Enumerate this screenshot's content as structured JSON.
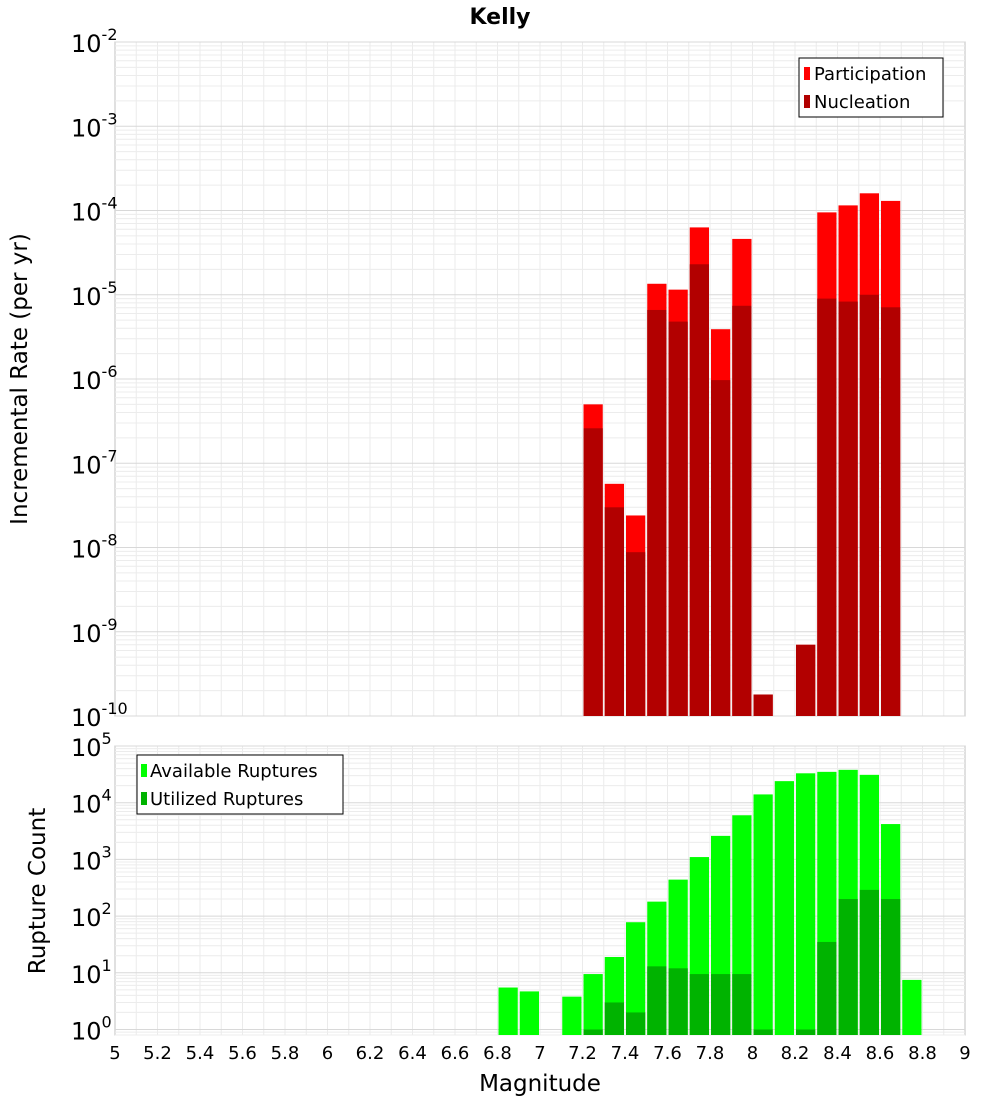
{
  "chart_data": [
    {
      "type": "bar",
      "title": "Kelly",
      "xlabel": "",
      "ylabel": "Incremental Rate (per yr)",
      "yscale": "log",
      "ylim": [
        1e-10,
        0.01
      ],
      "xlim": [
        5,
        9
      ],
      "bin_width": 0.1,
      "grid": true,
      "legend_position": "top-right",
      "y_ticks": [
        {
          "base": "10",
          "exp": "-10",
          "value": 1e-10
        },
        {
          "base": "10",
          "exp": "-9",
          "value": 1e-09
        },
        {
          "base": "10",
          "exp": "-8",
          "value": 1e-08
        },
        {
          "base": "10",
          "exp": "-7",
          "value": 1e-07
        },
        {
          "base": "10",
          "exp": "-6",
          "value": 1e-06
        },
        {
          "base": "10",
          "exp": "-5",
          "value": 1e-05
        },
        {
          "base": "10",
          "exp": "-4",
          "value": 0.0001
        },
        {
          "base": "10",
          "exp": "-3",
          "value": 0.001
        },
        {
          "base": "10",
          "exp": "-2",
          "value": 0.01
        }
      ],
      "series": [
        {
          "name": "Participation",
          "color": "#ff0000",
          "points": [
            [
              7.25,
              5e-07
            ],
            [
              7.35,
              5.7e-08
            ],
            [
              7.45,
              2.4e-08
            ],
            [
              7.55,
              1.35e-05
            ],
            [
              7.65,
              1.15e-05
            ],
            [
              7.75,
              6.3e-05
            ],
            [
              7.85,
              3.9e-06
            ],
            [
              7.95,
              4.6e-05
            ],
            [
              8.05,
              1.8e-10
            ],
            [
              8.25,
              7e-10
            ],
            [
              8.35,
              9.5e-05
            ],
            [
              8.45,
              0.000115
            ],
            [
              8.55,
              0.00016
            ],
            [
              8.65,
              0.00013
            ]
          ]
        },
        {
          "name": "Nucleation",
          "color": "#b20000",
          "points": [
            [
              7.25,
              2.6e-07
            ],
            [
              7.35,
              3e-08
            ],
            [
              7.45,
              8.8e-09
            ],
            [
              7.55,
              6.6e-06
            ],
            [
              7.65,
              4.8e-06
            ],
            [
              7.75,
              2.3e-05
            ],
            [
              7.85,
              9.7e-07
            ],
            [
              7.95,
              7.4e-06
            ],
            [
              8.05,
              1.8e-10
            ],
            [
              8.25,
              7e-10
            ],
            [
              8.35,
              9e-06
            ],
            [
              8.45,
              8.3e-06
            ],
            [
              8.55,
              1e-05
            ],
            [
              8.65,
              7.1e-06
            ]
          ]
        }
      ]
    },
    {
      "type": "bar",
      "title": "",
      "xlabel": "Magnitude",
      "ylabel": "Rupture Count",
      "yscale": "log",
      "ylim": [
        0.8,
        100000
      ],
      "xlim": [
        5,
        9
      ],
      "bin_width": 0.1,
      "grid": true,
      "legend_position": "top-left",
      "x_ticks": [
        "5",
        "5.2",
        "5.4",
        "5.6",
        "5.8",
        "6",
        "6.2",
        "6.4",
        "6.6",
        "6.8",
        "7",
        "7.2",
        "7.4",
        "7.6",
        "7.8",
        "8",
        "8.2",
        "8.4",
        "8.6",
        "8.8",
        "9"
      ],
      "y_ticks": [
        {
          "base": "10",
          "exp": "0",
          "value": 1
        },
        {
          "base": "10",
          "exp": "1",
          "value": 10
        },
        {
          "base": "10",
          "exp": "2",
          "value": 100
        },
        {
          "base": "10",
          "exp": "3",
          "value": 1000
        },
        {
          "base": "10",
          "exp": "4",
          "value": 10000
        },
        {
          "base": "10",
          "exp": "5",
          "value": 100000
        }
      ],
      "series": [
        {
          "name": "Available Ruptures",
          "color": "#00ff00",
          "points": [
            [
              6.85,
              5.5
            ],
            [
              6.95,
              4.7
            ],
            [
              7.15,
              3.8
            ],
            [
              7.25,
              9.5
            ],
            [
              7.35,
              19
            ],
            [
              7.45,
              78
            ],
            [
              7.55,
              180
            ],
            [
              7.65,
              440
            ],
            [
              7.75,
              1100
            ],
            [
              7.85,
              2600
            ],
            [
              7.95,
              6000
            ],
            [
              8.05,
              14000
            ],
            [
              8.15,
              24000
            ],
            [
              8.25,
              33000
            ],
            [
              8.35,
              35000
            ],
            [
              8.45,
              38000
            ],
            [
              8.55,
              31000
            ],
            [
              8.65,
              4200
            ],
            [
              8.75,
              7.5
            ]
          ]
        },
        {
          "name": "Utilized Ruptures",
          "color": "#00b300",
          "points": [
            [
              7.25,
              1
            ],
            [
              7.35,
              3
            ],
            [
              7.45,
              2
            ],
            [
              7.55,
              13
            ],
            [
              7.65,
              12
            ],
            [
              7.75,
              9.5
            ],
            [
              7.85,
              9.5
            ],
            [
              7.95,
              9.5
            ],
            [
              8.05,
              1
            ],
            [
              8.25,
              1
            ],
            [
              8.35,
              35
            ],
            [
              8.45,
              200
            ],
            [
              8.55,
              290
            ],
            [
              8.65,
              200
            ]
          ]
        }
      ]
    }
  ]
}
